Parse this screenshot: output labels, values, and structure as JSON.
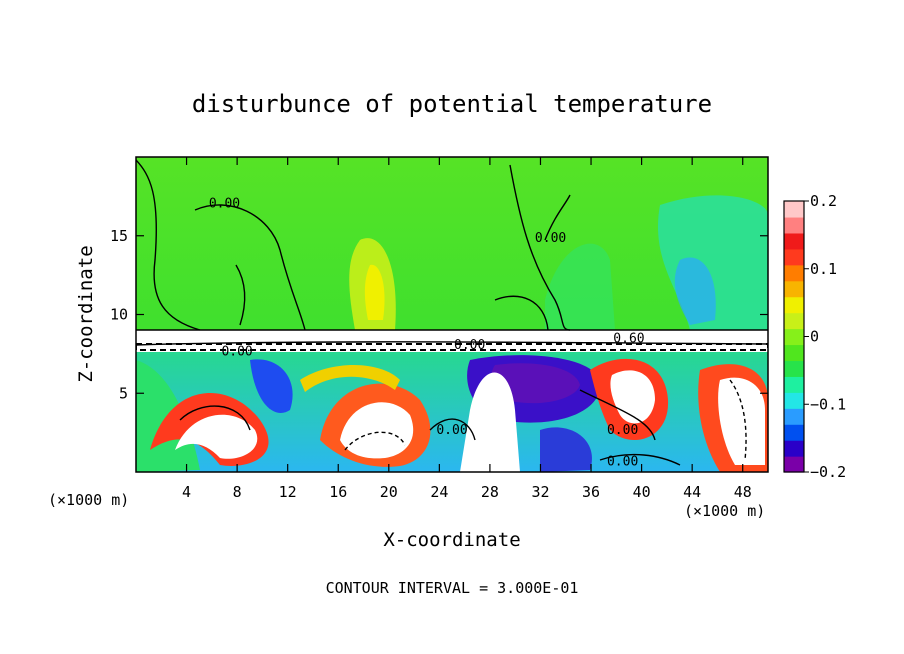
{
  "chart_data": {
    "type": "heatmap",
    "title": "disturbunce of potential temperature",
    "xlabel": "X-coordinate",
    "ylabel": "Z-coordinate",
    "x_unit_left": "(×1000 m)",
    "x_unit_right": "(×1000 m)",
    "xlim": [
      0,
      50
    ],
    "ylim": [
      0,
      20
    ],
    "x_ticks": [
      4,
      8,
      12,
      16,
      20,
      24,
      28,
      32,
      36,
      40,
      44,
      48
    ],
    "y_ticks": [
      5,
      10,
      15
    ],
    "colorbar": {
      "vmin": -0.2,
      "vmax": 0.2,
      "ticks": [
        0.2,
        0.1,
        0,
        -0.1,
        -0.2
      ],
      "tick_labels": [
        "0.2",
        "0.1",
        "0",
        "−0.1",
        "−0.2"
      ],
      "colors": [
        "#7a00a8",
        "#2a00c8",
        "#0050f0",
        "#2a9cff",
        "#23e6e6",
        "#1ef0a0",
        "#27e34a",
        "#50e61e",
        "#86f01a",
        "#c8f018",
        "#f0f000",
        "#f8b400",
        "#ff7d00",
        "#ff3a1e",
        "#f01a1a",
        "#ff8080",
        "#ffc8c8"
      ]
    },
    "contour_labels": [
      {
        "text": "0.00",
        "x": 7.0,
        "z": 17.0
      },
      {
        "text": "0.00",
        "x": 32.8,
        "z": 14.8
      },
      {
        "text": "0.00",
        "x": 8.0,
        "z": 7.6
      },
      {
        "text": "0.00",
        "x": 26.4,
        "z": 8.0
      },
      {
        "text": "0.60",
        "x": 39.0,
        "z": 8.4
      },
      {
        "text": "0.00",
        "x": 25.0,
        "z": 2.6
      },
      {
        "text": "0.00",
        "x": 38.5,
        "z": 2.6
      },
      {
        "text": "0.00",
        "x": 38.5,
        "z": 0.6
      }
    ],
    "footer": "CONTOUR INTERVAL = 3.000E-01"
  }
}
